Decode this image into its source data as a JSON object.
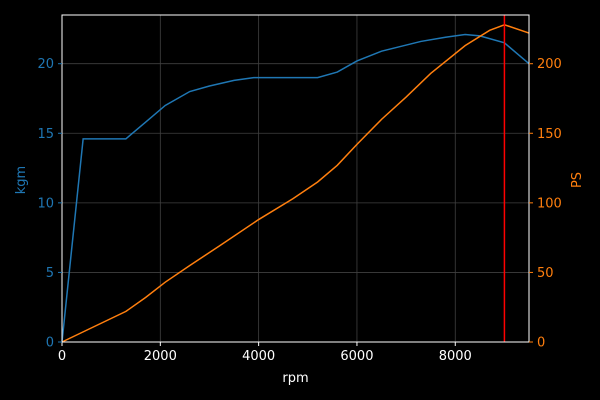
{
  "chart_data": {
    "type": "line",
    "xlabel": "rpm",
    "xlim": [
      0,
      9500
    ],
    "x_ticks": [
      0,
      2000,
      4000,
      6000,
      8000
    ],
    "y_left": {
      "label": "kgm",
      "ylim": [
        0,
        23.5
      ],
      "ticks": [
        0,
        5,
        10,
        15,
        20
      ]
    },
    "y_right": {
      "label": "PS",
      "ylim": [
        0,
        235
      ],
      "ticks": [
        0,
        50,
        100,
        150,
        200
      ]
    },
    "grid": true,
    "series": [
      {
        "axis": "left",
        "color": "#1f77b4",
        "x": [
          0,
          430,
          1300,
          1700,
          2100,
          2600,
          3000,
          3500,
          3900,
          4500,
          5200,
          5600,
          6000,
          6500,
          7300,
          7800,
          8200,
          8500,
          9000,
          9500
        ],
        "y": [
          0,
          14.6,
          14.6,
          15.8,
          17.0,
          18.0,
          18.4,
          18.8,
          19.0,
          19.0,
          19.0,
          19.4,
          20.2,
          20.9,
          21.6,
          21.9,
          22.1,
          22.0,
          21.5,
          20.0
        ]
      },
      {
        "axis": "right",
        "color": "#ff7f0e",
        "x": [
          0,
          1300,
          1700,
          2100,
          2600,
          3200,
          4000,
          4700,
          5200,
          5600,
          6000,
          6500,
          7000,
          7500,
          8200,
          8700,
          9000,
          9500
        ],
        "y": [
          0,
          22,
          32,
          43,
          55,
          69,
          88,
          103,
          115,
          127,
          142,
          160,
          176,
          193,
          213,
          224,
          228,
          222
        ]
      }
    ],
    "vline": {
      "x": 9000,
      "color": "#ff0000"
    },
    "colors": {
      "background": "#000000",
      "axis": "#ffffff",
      "grid": "#404040",
      "left_axis": "#1f77b4",
      "right_axis": "#ff7f0e"
    }
  }
}
